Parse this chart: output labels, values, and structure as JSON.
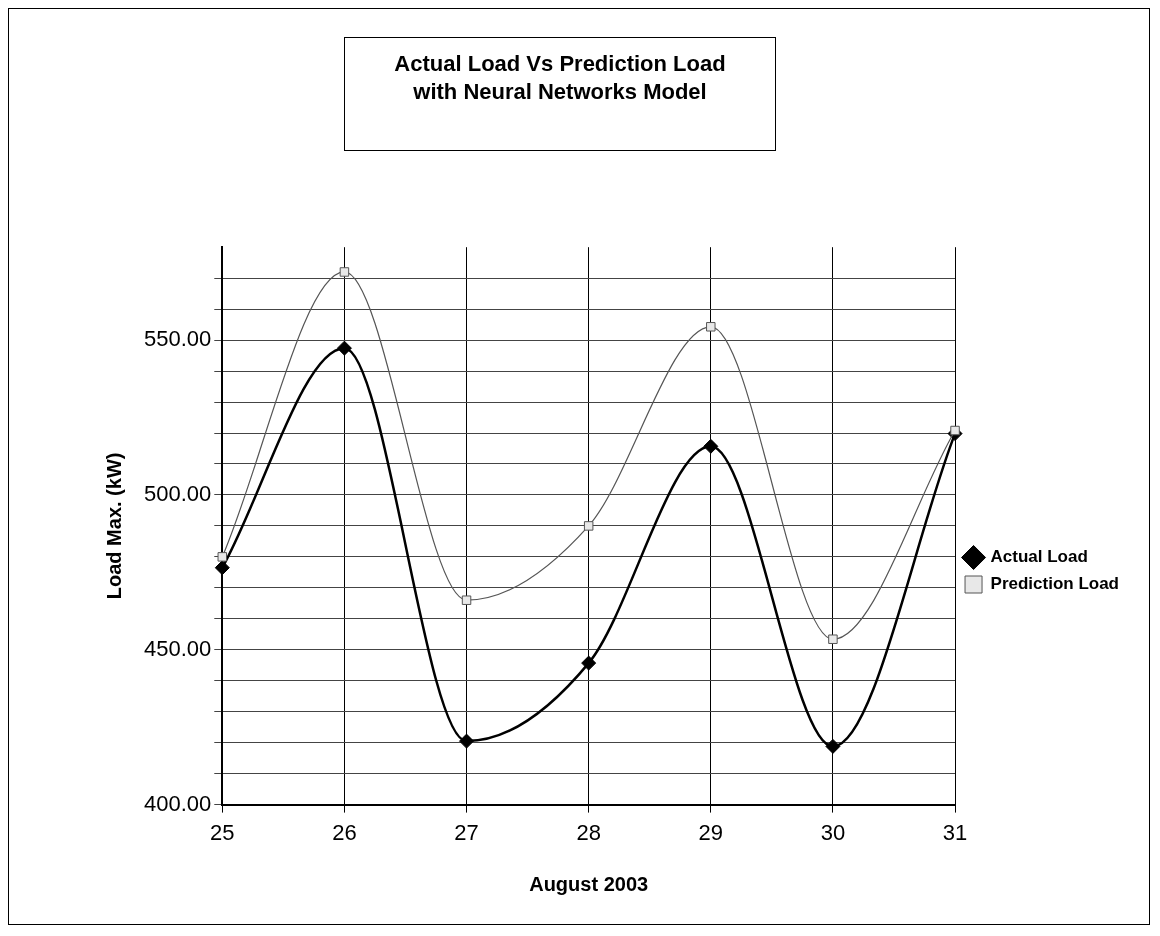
{
  "chart_data": {
    "type": "line",
    "title": "Actual Load Vs Prediction Load\nwith Neural Networks Model",
    "xlabel": "August 2003",
    "ylabel": "Load Max. (kW)",
    "categories": [
      "25",
      "26",
      "27",
      "28",
      "29",
      "30",
      "31"
    ],
    "series": [
      {
        "name": "Actual Load",
        "color": "#000000",
        "marker": "diamond",
        "values": [
          476.5,
          547.4,
          420.5,
          445.7,
          515.7,
          418.8,
          519.8
        ]
      },
      {
        "name": "Prediction Load",
        "color": "#555555",
        "marker": "square",
        "values": [
          480,
          572,
          466,
          490,
          554.3,
          453.4,
          520.8
        ]
      }
    ],
    "ylim": [
      400,
      580
    ],
    "yticks": [
      {
        "value": 400,
        "label": "400.00"
      },
      {
        "value": 410,
        "label": null
      },
      {
        "value": 420,
        "label": null
      },
      {
        "value": 430,
        "label": null
      },
      {
        "value": 440,
        "label": null
      },
      {
        "value": 450,
        "label": "450.00"
      },
      {
        "value": 460,
        "label": null
      },
      {
        "value": 470,
        "label": null
      },
      {
        "value": 480,
        "label": null
      },
      {
        "value": 490,
        "label": null
      },
      {
        "value": 500,
        "label": "500.00"
      },
      {
        "value": 510,
        "label": null
      },
      {
        "value": 520,
        "label": null
      },
      {
        "value": 530,
        "label": null
      },
      {
        "value": 540,
        "label": null
      },
      {
        "value": 550,
        "label": "550.00"
      },
      {
        "value": 560,
        "label": null
      },
      {
        "value": 570,
        "label": null
      }
    ],
    "grid": true,
    "legend": "right"
  }
}
